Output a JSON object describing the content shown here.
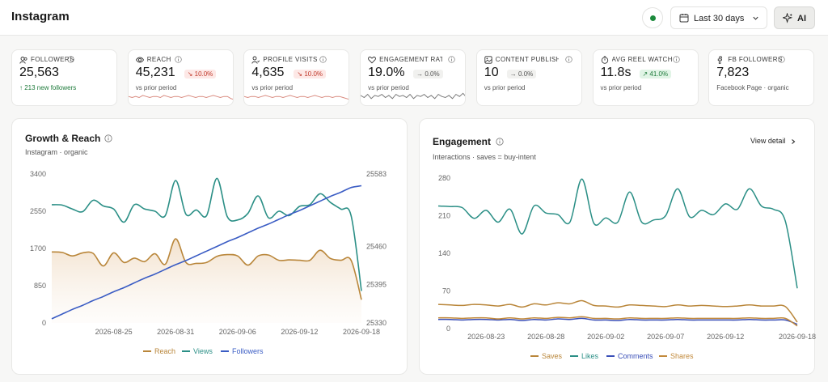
{
  "app": {
    "title": "Instagram"
  },
  "header": {
    "date_range": "Last 30 days",
    "ai_label": "AI",
    "status_color": "#1c8a3c"
  },
  "kpis": [
    {
      "icon": "users-icon",
      "label": "FOLLOWERS",
      "value": "25,563",
      "delta": "",
      "sub": "↑ 213 new followers",
      "sub_color": "#1d7a3a",
      "spark": []
    },
    {
      "icon": "eye-icon",
      "label": "REACH",
      "value": "45,231",
      "delta": "↘ 10.0%",
      "delta_kind": "down",
      "sub": "vs prior period",
      "spark_color": "#d98a7f",
      "spark": [
        6,
        5,
        6,
        5,
        7,
        6,
        5,
        6,
        6,
        5,
        7,
        6,
        5,
        6,
        6,
        5,
        6,
        7,
        6,
        5,
        6,
        6,
        5,
        6,
        7,
        6,
        5,
        6,
        6,
        4,
        3
      ]
    },
    {
      "icon": "user-visit-icon",
      "label": "PROFILE VISITS",
      "value": "4,635",
      "delta": "↘ 10.0%",
      "delta_kind": "down",
      "sub": "vs prior period",
      "spark_color": "#d98a7f",
      "spark": [
        6,
        5,
        6,
        6,
        5,
        6,
        7,
        6,
        5,
        6,
        6,
        5,
        6,
        7,
        6,
        5,
        6,
        6,
        5,
        6,
        7,
        6,
        5,
        6,
        6,
        5,
        6,
        6,
        5,
        4,
        3
      ]
    },
    {
      "icon": "heart-icon",
      "label": "ENGAGEMENT RATE",
      "value": "19.0%",
      "delta": "→ 0.0%",
      "delta_kind": "flat",
      "sub": "vs prior period",
      "spark_color": "#7a7a7a",
      "spark": [
        7,
        5,
        8,
        4,
        7,
        6,
        8,
        5,
        7,
        4,
        8,
        6,
        7,
        5,
        8,
        4,
        7,
        6,
        8,
        5,
        7,
        4,
        8,
        6,
        5,
        7,
        4,
        8,
        6,
        9,
        5
      ]
    },
    {
      "icon": "image-icon",
      "label": "CONTENT PUBLISHED",
      "value": "10",
      "delta": "→ 0.0%",
      "delta_kind": "flat",
      "sub": "vs prior period",
      "spark": []
    },
    {
      "icon": "stopwatch-icon",
      "label": "AVG REEL WATCH",
      "value": "11.8s",
      "delta": "↗ 41.0%",
      "delta_kind": "up",
      "sub": "vs prior period",
      "spark": []
    },
    {
      "icon": "facebook-icon",
      "label": "FB FOLLOWERS",
      "value": "7,823",
      "delta": "",
      "sub": "Facebook Page · organic",
      "spark": []
    }
  ],
  "growth_card": {
    "title": "Growth & Reach",
    "subtitle": "Instagram · organic",
    "legend": [
      "Reach",
      "Views",
      "Followers"
    ]
  },
  "engagement_card": {
    "title": "Engagement",
    "subtitle": "Interactions · saves = buy-intent",
    "view_detail": "View detail",
    "legend": [
      "Saves",
      "Likes",
      "Comments",
      "Shares"
    ]
  },
  "colors": {
    "reach": "#b9863a",
    "views": "#2b8f86",
    "followers": "#3a5cc4",
    "saves": "#b9863a",
    "likes": "#2b8f86",
    "comments": "#3a4fb8",
    "shares": "#c28a3c"
  },
  "chart_data": [
    {
      "type": "line",
      "title": "Growth & Reach",
      "x_ticks": [
        "2026-08-25",
        "2026-08-31",
        "2026-09-06",
        "2026-09-12",
        "2026-09-18"
      ],
      "x": [
        "2026-08-19",
        "2026-08-20",
        "2026-08-21",
        "2026-08-22",
        "2026-08-23",
        "2026-08-24",
        "2026-08-25",
        "2026-08-26",
        "2026-08-27",
        "2026-08-28",
        "2026-08-29",
        "2026-08-30",
        "2026-08-31",
        "2026-09-01",
        "2026-09-02",
        "2026-09-03",
        "2026-09-04",
        "2026-09-05",
        "2026-09-06",
        "2026-09-07",
        "2026-09-08",
        "2026-09-09",
        "2026-09-10",
        "2026-09-11",
        "2026-09-12",
        "2026-09-13",
        "2026-09-14",
        "2026-09-15",
        "2026-09-16",
        "2026-09-17",
        "2026-09-18"
      ],
      "y_left_ticks": [
        "0",
        "850",
        "1700",
        "2550",
        "3400"
      ],
      "y_left_range": [
        0,
        3400
      ],
      "y_right_ticks": [
        "25330",
        "25395",
        "25460",
        "25583"
      ],
      "y_right_range": [
        25330,
        25583
      ],
      "series": [
        {
          "name": "Reach",
          "axis": "left",
          "fill": true,
          "values": [
            1620,
            1610,
            1530,
            1600,
            1590,
            1300,
            1600,
            1380,
            1480,
            1400,
            1580,
            1340,
            1920,
            1380,
            1360,
            1380,
            1520,
            1560,
            1530,
            1320,
            1530,
            1550,
            1430,
            1440,
            1430,
            1430,
            1660,
            1470,
            1430,
            1430,
            530
          ]
        },
        {
          "name": "Views",
          "axis": "left",
          "values": [
            2700,
            2690,
            2600,
            2540,
            2800,
            2670,
            2600,
            2300,
            2700,
            2600,
            2550,
            2450,
            3250,
            2480,
            2580,
            2450,
            3300,
            2430,
            2350,
            2500,
            2900,
            2400,
            2550,
            2450,
            2660,
            2700,
            2950,
            2750,
            2600,
            2450,
            730
          ]
        },
        {
          "name": "Followers",
          "axis": "right",
          "values": [
            25337,
            25345,
            25353,
            25360,
            25368,
            25375,
            25383,
            25390,
            25398,
            25406,
            25413,
            25421,
            25429,
            25436,
            25444,
            25452,
            25460,
            25468,
            25475,
            25483,
            25491,
            25498,
            25506,
            25514,
            25521,
            25529,
            25537,
            25545,
            25552,
            25560,
            25563
          ]
        }
      ]
    },
    {
      "type": "line",
      "title": "Engagement",
      "x_ticks": [
        "2026-08-23",
        "2026-08-28",
        "2026-09-02",
        "2026-09-07",
        "2026-09-12",
        "2026-09-18"
      ],
      "x": [
        "2026-08-19",
        "2026-08-20",
        "2026-08-21",
        "2026-08-22",
        "2026-08-23",
        "2026-08-24",
        "2026-08-25",
        "2026-08-26",
        "2026-08-27",
        "2026-08-28",
        "2026-08-29",
        "2026-08-30",
        "2026-08-31",
        "2026-09-01",
        "2026-09-02",
        "2026-09-03",
        "2026-09-04",
        "2026-09-05",
        "2026-09-06",
        "2026-09-07",
        "2026-09-08",
        "2026-09-09",
        "2026-09-10",
        "2026-09-11",
        "2026-09-12",
        "2026-09-13",
        "2026-09-14",
        "2026-09-15",
        "2026-09-16",
        "2026-09-17",
        "2026-09-18"
      ],
      "y_ticks": [
        "0",
        "70",
        "140",
        "210",
        "280"
      ],
      "y_range": [
        0,
        280
      ],
      "series": [
        {
          "name": "Saves",
          "values": [
            45,
            44,
            43,
            45,
            44,
            42,
            45,
            40,
            46,
            44,
            48,
            46,
            52,
            43,
            42,
            40,
            44,
            43,
            42,
            41,
            44,
            42,
            43,
            42,
            41,
            42,
            44,
            42,
            42,
            41,
            12
          ]
        },
        {
          "name": "Likes",
          "values": [
            228,
            227,
            225,
            205,
            220,
            198,
            222,
            176,
            228,
            215,
            212,
            198,
            278,
            196,
            206,
            198,
            254,
            198,
            202,
            210,
            260,
            208,
            220,
            212,
            232,
            222,
            260,
            228,
            222,
            200,
            75
          ]
        },
        {
          "name": "Comments",
          "values": [
            17,
            17,
            16,
            17,
            17,
            16,
            17,
            15,
            17,
            16,
            18,
            17,
            19,
            16,
            16,
            15,
            17,
            16,
            16,
            16,
            17,
            16,
            16,
            16,
            16,
            16,
            17,
            16,
            16,
            16,
            8
          ]
        },
        {
          "name": "Shares",
          "values": [
            20,
            20,
            19,
            20,
            20,
            18,
            20,
            18,
            20,
            19,
            21,
            20,
            22,
            19,
            19,
            18,
            20,
            19,
            19,
            19,
            20,
            19,
            19,
            19,
            19,
            19,
            20,
            19,
            19,
            19,
            5
          ]
        }
      ]
    }
  ]
}
